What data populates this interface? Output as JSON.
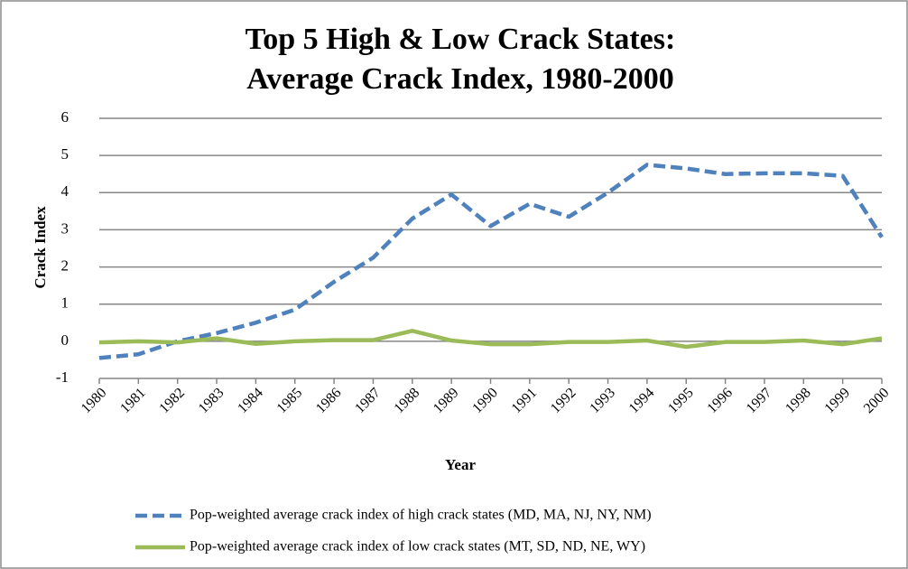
{
  "chart_data": {
    "type": "line",
    "title": [
      "Top 5 High & Low Crack States:",
      "Average Crack Index, 1980-2000"
    ],
    "x_label": "Year",
    "y_label": "Crack Index",
    "categories": [
      "1980",
      "1981",
      "1982",
      "1983",
      "1984",
      "1985",
      "1986",
      "1987",
      "1988",
      "1989",
      "1990",
      "1991",
      "1992",
      "1993",
      "1994",
      "1995",
      "1996",
      "1997",
      "1998",
      "1999",
      "2000"
    ],
    "series": [
      {
        "name": "Pop-weighted average crack index of high crack states (MD, MA, NJ, NY, NM)",
        "color": "#4f81bd",
        "dashed": true,
        "values": [
          -0.45,
          -0.35,
          0,
          0.22,
          0.5,
          0.85,
          1.6,
          2.25,
          3.3,
          3.95,
          3.1,
          3.7,
          3.35,
          4.0,
          4.75,
          4.65,
          4.5,
          4.52,
          4.52,
          4.45,
          2.8
        ]
      },
      {
        "name": "Pop-weighted average crack index of low crack states (MT, SD, ND, NE, WY)",
        "color": "#9bbb59",
        "dashed": false,
        "values": [
          -0.03,
          0,
          -0.03,
          0.08,
          -0.07,
          0,
          0.03,
          0.03,
          0.28,
          0.02,
          -0.08,
          -0.08,
          -0.02,
          -0.02,
          0.02,
          -0.15,
          -0.02,
          -0.02,
          0.02,
          -0.08,
          0.08
        ]
      }
    ],
    "ylim": [
      -1,
      6
    ],
    "yticks": [
      -1,
      0,
      1,
      2,
      3,
      4,
      5,
      6
    ],
    "grid": true
  }
}
